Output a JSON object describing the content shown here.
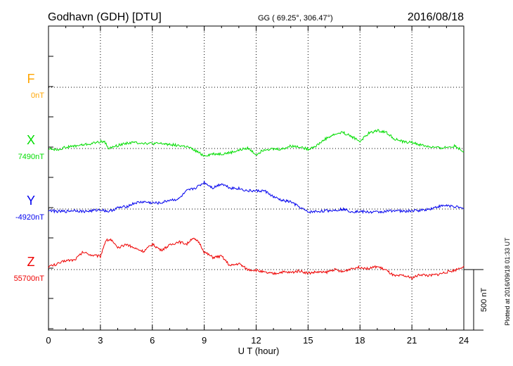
{
  "header": {
    "station": "Godhavn (GDH)  [DTU]",
    "coords": "GG ( 69.25°, 306.47°)",
    "date": "2016/08/18"
  },
  "footer": {
    "plotted": "Plotted at 2016/09/18 01:33 UT"
  },
  "chart_data": {
    "type": "line",
    "xlabel": "U T (hour)",
    "xlim": [
      0,
      24
    ],
    "xticks": [
      "0",
      "3",
      "6",
      "9",
      "12",
      "15",
      "18",
      "21",
      "24"
    ],
    "scale_bar": "500 nT",
    "grid": true,
    "series": [
      {
        "name": "F",
        "baseline_label": "0nT",
        "color": "#ffa500",
        "x": [],
        "y": []
      },
      {
        "name": "X",
        "baseline_label": "7490nT",
        "color": "#00dd00",
        "x": [
          0,
          0.5,
          1,
          1.5,
          2,
          2.5,
          2.9,
          3.2,
          3.5,
          4,
          4.5,
          5,
          5.5,
          6,
          6.5,
          7,
          7.5,
          8,
          8.5,
          9,
          9.5,
          10,
          10.5,
          11,
          11.5,
          12,
          12.5,
          13,
          13.5,
          14,
          14.5,
          15,
          15.5,
          16,
          16.5,
          17,
          17.5,
          18,
          18.5,
          19,
          19.5,
          20,
          20.5,
          21,
          21.5,
          22,
          22.5,
          23,
          23.5,
          24
        ],
        "y": [
          0,
          -10,
          10,
          20,
          30,
          40,
          55,
          60,
          0,
          25,
          45,
          50,
          45,
          40,
          40,
          35,
          25,
          15,
          -20,
          -60,
          -45,
          -45,
          -35,
          -15,
          5,
          -50,
          -5,
          -5,
          -5,
          20,
          15,
          -5,
          25,
          80,
          115,
          135,
          100,
          60,
          125,
          150,
          135,
          80,
          55,
          50,
          30,
          15,
          5,
          10,
          20,
          -25
        ]
      },
      {
        "name": "Y",
        "baseline_label": "-4920nT",
        "color": "#0000ee",
        "x": [
          0,
          0.5,
          1,
          1.5,
          2,
          2.5,
          3,
          3.5,
          4,
          4.5,
          5,
          5.5,
          6,
          6.5,
          7,
          7.5,
          8,
          8.5,
          9,
          9.5,
          10,
          10.5,
          11,
          11.5,
          12,
          12.5,
          13,
          13.5,
          14,
          14.5,
          15,
          15.5,
          16,
          16.5,
          17,
          17.5,
          18,
          18.5,
          19,
          19.5,
          20,
          20.5,
          21,
          21.5,
          22,
          22.5,
          23,
          23.5,
          24
        ],
        "y": [
          -10,
          -20,
          -20,
          -10,
          -20,
          -15,
          -5,
          -20,
          10,
          20,
          50,
          60,
          50,
          50,
          75,
          80,
          150,
          175,
          220,
          175,
          210,
          175,
          170,
          150,
          150,
          150,
          100,
          70,
          60,
          15,
          -25,
          -20,
          -15,
          -10,
          0,
          -20,
          -20,
          -25,
          -25,
          -20,
          -10,
          -20,
          -15,
          -10,
          0,
          20,
          30,
          20,
          0
        ]
      },
      {
        "name": "Z",
        "baseline_label": "55700nT",
        "color": "#ee0000",
        "x": [
          0,
          0.5,
          1,
          1.5,
          2,
          2.5,
          3,
          3.3,
          3.6,
          4,
          4.5,
          5,
          5.5,
          6,
          6.5,
          7,
          7.5,
          8,
          8.3,
          8.7,
          9,
          9.5,
          10,
          10.5,
          11,
          11.5,
          12,
          12.5,
          13,
          13.5,
          14,
          14.5,
          15,
          15.5,
          16,
          16.5,
          17,
          17.5,
          18,
          18.5,
          19,
          19.5,
          20,
          20.5,
          21,
          21.5,
          22,
          22.5,
          23,
          23.5,
          24
        ],
        "y": [
          25,
          45,
          75,
          80,
          145,
          120,
          110,
          240,
          250,
          175,
          210,
          175,
          150,
          210,
          160,
          200,
          230,
          210,
          260,
          225,
          145,
          100,
          110,
          30,
          50,
          0,
          -5,
          -25,
          -35,
          -20,
          -25,
          -10,
          -30,
          -20,
          -25,
          0,
          -20,
          10,
          20,
          10,
          25,
          -5,
          -55,
          -50,
          -70,
          -40,
          -50,
          -40,
          -20,
          -5,
          30
        ]
      }
    ]
  }
}
